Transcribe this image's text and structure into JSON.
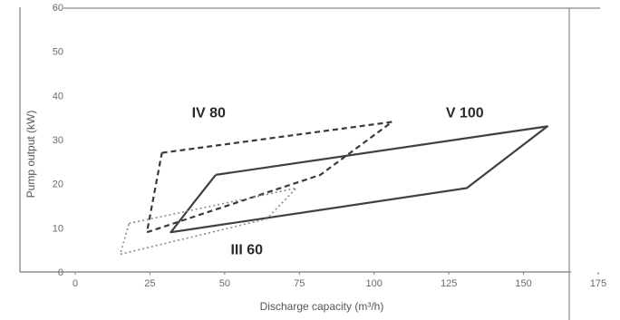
{
  "chart_data": {
    "type": "line",
    "title": "",
    "xlabel": "Discharge capacity (m³/h)",
    "ylabel": "Pump output (kW)",
    "xlim": [
      0,
      175
    ],
    "ylim": [
      0,
      60
    ],
    "x_ticks": [
      0,
      25,
      50,
      75,
      100,
      125,
      150,
      175
    ],
    "y_ticks": [
      0,
      10,
      20,
      30,
      40,
      50,
      60
    ],
    "grid": false,
    "series": [
      {
        "name": "IV 80",
        "line_style": "dashed",
        "color": "#3a3a3a",
        "label_at": [
          39,
          35
        ],
        "points": [
          [
            29,
            27
          ],
          [
            106,
            34
          ],
          [
            82,
            22
          ],
          [
            24,
            9
          ],
          [
            29,
            27
          ]
        ]
      },
      {
        "name": "V 100",
        "line_style": "solid",
        "color": "#404040",
        "label_at": [
          124,
          35
        ],
        "points": [
          [
            47,
            22
          ],
          [
            158,
            33
          ],
          [
            131,
            19
          ],
          [
            32,
            9
          ],
          [
            40,
            16
          ],
          [
            47,
            22
          ]
        ]
      },
      {
        "name": "III 60",
        "line_style": "dotted",
        "color": "#8a8a8a",
        "label_at": [
          52,
          4
        ],
        "points": [
          [
            18,
            11
          ],
          [
            74,
            19
          ],
          [
            64,
            12
          ],
          [
            15,
            4
          ],
          [
            18,
            11
          ]
        ]
      }
    ]
  }
}
